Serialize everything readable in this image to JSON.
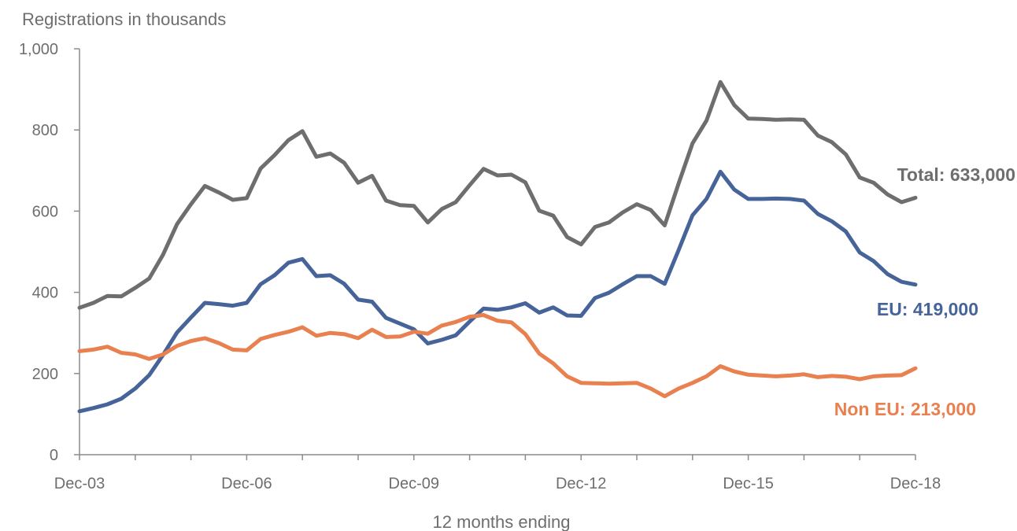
{
  "chart_data": {
    "type": "line",
    "ylabel": "Registrations in thousands",
    "xlabel": "12 months ending",
    "ylim": [
      0,
      1000
    ],
    "yticks": [
      0,
      200,
      400,
      600,
      800,
      1000
    ],
    "ytick_labels": [
      "0",
      "200",
      "400",
      "600",
      "800",
      "1,000"
    ],
    "xlim": [
      0,
      60
    ],
    "xticks": [
      0,
      12,
      24,
      36,
      48,
      60
    ],
    "xtick_labels": [
      "Dec-03",
      "Dec-06",
      "Dec-09",
      "Dec-12",
      "Dec-15",
      "Dec-18"
    ],
    "grid": false,
    "legend": "none",
    "x": [
      0,
      1,
      2,
      3,
      4,
      5,
      6,
      7,
      8,
      9,
      10,
      11,
      12,
      13,
      14,
      15,
      16,
      17,
      18,
      19,
      20,
      21,
      22,
      23,
      24,
      25,
      26,
      27,
      28,
      29,
      30,
      31,
      32,
      33,
      34,
      35,
      36,
      37,
      38,
      39,
      40,
      41,
      42,
      43,
      44,
      45,
      46,
      47,
      48,
      49,
      50,
      51,
      52,
      53,
      54,
      55,
      56,
      57,
      58,
      59,
      60
    ],
    "series": [
      {
        "name": "Total",
        "label": "Total: 633,000",
        "color": "#6e6e6e",
        "values": [
          362,
          374,
          391,
          390,
          411,
          434,
          493,
          568,
          617,
          662,
          646,
          628,
          632,
          705,
          738,
          775,
          797,
          734,
          742,
          719,
          670,
          687,
          626,
          615,
          613,
          572,
          605,
          622,
          664,
          704,
          688,
          690,
          671,
          601,
          589,
          536,
          518,
          561,
          572,
          597,
          617,
          603,
          565,
          668,
          767,
          823,
          918,
          861,
          828,
          827,
          825,
          826,
          825,
          786,
          770,
          740,
          683,
          670,
          641,
          622,
          633
        ]
      },
      {
        "name": "EU",
        "label": "EU: 419,000",
        "color": "#466499",
        "values": [
          107,
          115,
          124,
          138,
          163,
          196,
          246,
          301,
          338,
          374,
          371,
          367,
          374,
          420,
          442,
          473,
          482,
          440,
          442,
          421,
          382,
          377,
          337,
          323,
          309,
          274,
          283,
          294,
          328,
          360,
          357,
          363,
          373,
          350,
          363,
          343,
          342,
          386,
          399,
          420,
          440,
          440,
          421,
          504,
          590,
          630,
          697,
          653,
          630,
          630,
          631,
          630,
          626,
          593,
          575,
          550,
          498,
          477,
          445,
          426,
          419
        ]
      },
      {
        "name": "Non EU",
        "label": "Non EU: 213,000",
        "color": "#e8804f",
        "values": [
          255,
          259,
          266,
          251,
          247,
          236,
          247,
          268,
          280,
          287,
          275,
          259,
          257,
          285,
          295,
          303,
          314,
          293,
          300,
          297,
          287,
          308,
          290,
          291,
          303,
          298,
          318,
          327,
          340,
          344,
          330,
          326,
          297,
          249,
          225,
          193,
          177,
          176,
          175,
          176,
          177,
          163,
          144,
          163,
          177,
          193,
          218,
          205,
          197,
          195,
          193,
          195,
          198,
          191,
          194,
          192,
          186,
          193,
          195,
          196,
          213
        ]
      }
    ]
  }
}
